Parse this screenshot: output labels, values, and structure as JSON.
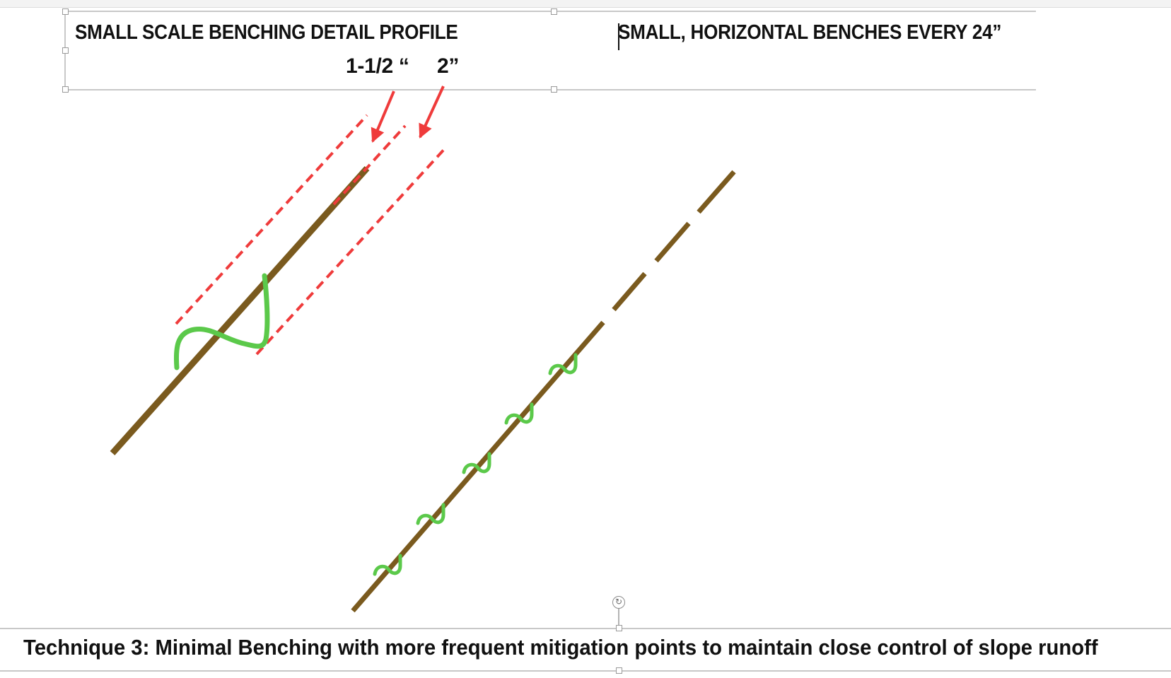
{
  "header_box": {
    "title_left": "SMALL SCALE BENCHING DETAIL PROFILE",
    "title_right": "SMALL, HORIZONTAL BENCHES EVERY 24”"
  },
  "dimensions": {
    "label_a": "1-1/2 “",
    "label_b": "2”"
  },
  "caption": "Technique 3: Minimal Benching with more frequent mitigation points to maintain close control of slope runoff",
  "icons": {
    "rotate": "rotate-icon"
  },
  "colors": {
    "slope": "#7a5a1e",
    "bench_curve": "#5bc94a",
    "dimension_guide": "#ef3b3b",
    "frame": "#c8c8c8"
  }
}
